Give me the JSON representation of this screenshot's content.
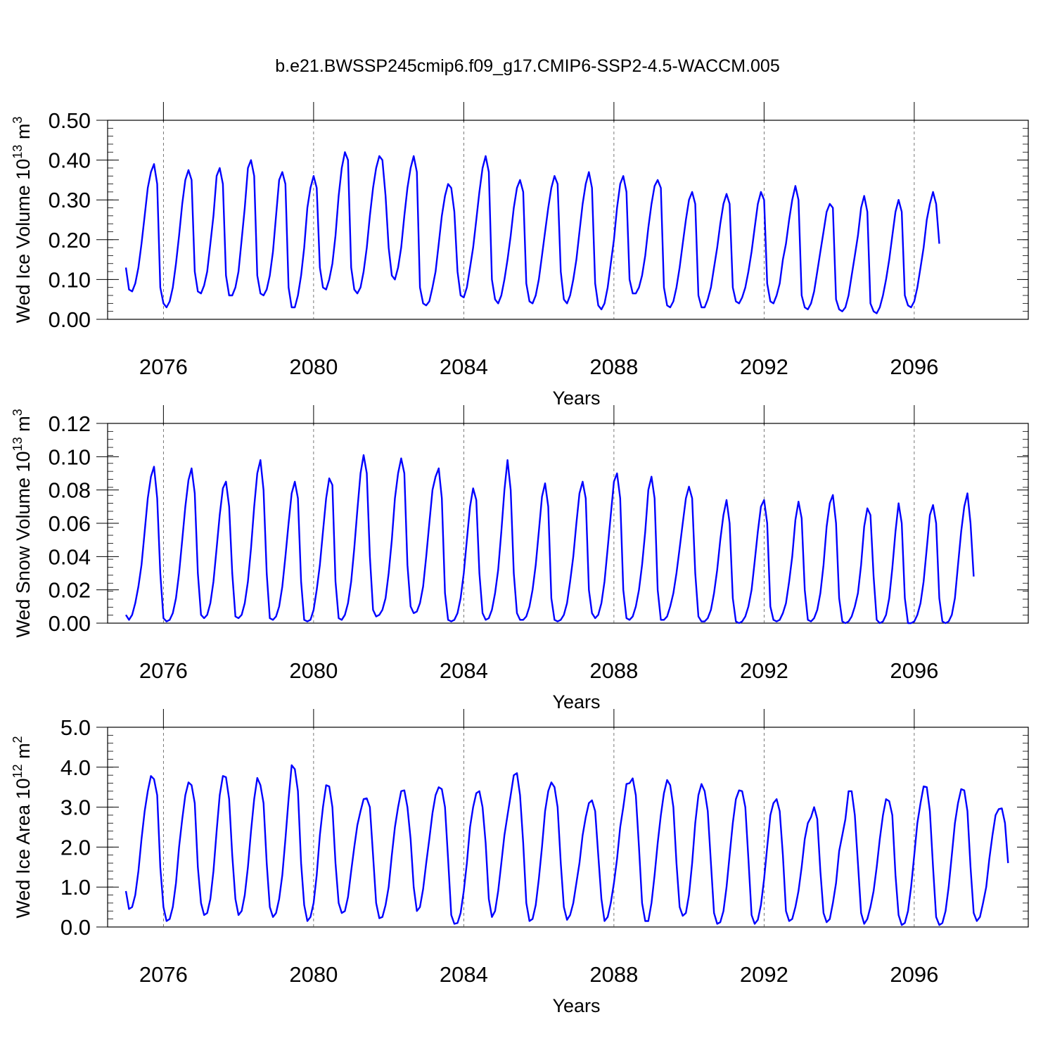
{
  "figure": {
    "title": "b.e21.BWSSP245cmip6.f09_g17.CMIP6-SSP2-4.5-WACCM.005"
  },
  "chart_data": [
    {
      "type": "line",
      "ylabel": "Wed Ice Volume 10",
      "ylabel_exp": "13",
      "ylabel_unit": " m",
      "ylabel_unit_exp": "3",
      "xlabel": "Years",
      "xlim": [
        2075,
        2099
      ],
      "ylim": [
        0,
        0.5
      ],
      "xticks": [
        "2076",
        "2080",
        "2084",
        "2088",
        "2092",
        "2096"
      ],
      "xtick_values": [
        2076,
        2080,
        2084,
        2088,
        2092,
        2096
      ],
      "yticks": [
        "0.00",
        "0.10",
        "0.20",
        "0.30",
        "0.40",
        "0.50"
      ],
      "ytick_values": [
        0,
        0.1,
        0.2,
        0.3,
        0.4,
        0.5
      ],
      "grid": "dashed vertical lines at 4-year ticks",
      "series": [
        {
          "color": "#0000ff",
          "x_start": 2075,
          "x_step_months": 1,
          "values": [
            0.13,
            0.075,
            0.07,
            0.09,
            0.13,
            0.19,
            0.26,
            0.33,
            0.37,
            0.39,
            0.34,
            0.08,
            0.04,
            0.03,
            0.045,
            0.08,
            0.14,
            0.21,
            0.29,
            0.35,
            0.375,
            0.35,
            0.12,
            0.07,
            0.065,
            0.085,
            0.12,
            0.19,
            0.26,
            0.36,
            0.38,
            0.34,
            0.11,
            0.06,
            0.06,
            0.08,
            0.12,
            0.2,
            0.28,
            0.38,
            0.4,
            0.36,
            0.11,
            0.065,
            0.06,
            0.075,
            0.11,
            0.17,
            0.26,
            0.35,
            0.37,
            0.34,
            0.08,
            0.03,
            0.03,
            0.06,
            0.11,
            0.18,
            0.28,
            0.33,
            0.36,
            0.33,
            0.13,
            0.08,
            0.075,
            0.1,
            0.14,
            0.21,
            0.31,
            0.38,
            0.42,
            0.4,
            0.13,
            0.075,
            0.065,
            0.08,
            0.12,
            0.18,
            0.26,
            0.33,
            0.38,
            0.41,
            0.4,
            0.31,
            0.18,
            0.11,
            0.1,
            0.13,
            0.18,
            0.26,
            0.33,
            0.38,
            0.41,
            0.37,
            0.08,
            0.04,
            0.035,
            0.045,
            0.08,
            0.12,
            0.19,
            0.26,
            0.31,
            0.34,
            0.33,
            0.27,
            0.12,
            0.06,
            0.055,
            0.08,
            0.13,
            0.18,
            0.25,
            0.32,
            0.38,
            0.41,
            0.37,
            0.1,
            0.05,
            0.04,
            0.06,
            0.1,
            0.15,
            0.21,
            0.28,
            0.33,
            0.35,
            0.32,
            0.09,
            0.045,
            0.04,
            0.06,
            0.1,
            0.16,
            0.22,
            0.28,
            0.33,
            0.36,
            0.34,
            0.12,
            0.05,
            0.04,
            0.06,
            0.1,
            0.15,
            0.22,
            0.29,
            0.34,
            0.37,
            0.33,
            0.09,
            0.035,
            0.025,
            0.04,
            0.08,
            0.14,
            0.2,
            0.28,
            0.34,
            0.36,
            0.32,
            0.1,
            0.065,
            0.065,
            0.08,
            0.11,
            0.16,
            0.23,
            0.29,
            0.335,
            0.35,
            0.33,
            0.08,
            0.035,
            0.03,
            0.045,
            0.08,
            0.13,
            0.19,
            0.25,
            0.3,
            0.32,
            0.29,
            0.06,
            0.03,
            0.03,
            0.05,
            0.08,
            0.13,
            0.18,
            0.24,
            0.29,
            0.315,
            0.29,
            0.08,
            0.045,
            0.04,
            0.055,
            0.08,
            0.12,
            0.17,
            0.23,
            0.29,
            0.32,
            0.3,
            0.09,
            0.045,
            0.04,
            0.06,
            0.09,
            0.15,
            0.19,
            0.25,
            0.3,
            0.335,
            0.3,
            0.06,
            0.03,
            0.025,
            0.04,
            0.07,
            0.12,
            0.17,
            0.22,
            0.27,
            0.29,
            0.28,
            0.05,
            0.025,
            0.02,
            0.03,
            0.06,
            0.11,
            0.16,
            0.21,
            0.28,
            0.31,
            0.27,
            0.04,
            0.02,
            0.015,
            0.03,
            0.06,
            0.1,
            0.15,
            0.21,
            0.27,
            0.3,
            0.27,
            0.06,
            0.035,
            0.03,
            0.045,
            0.08,
            0.13,
            0.18,
            0.25,
            0.29,
            0.32,
            0.29,
            0.19
          ]
        }
      ]
    },
    {
      "type": "line",
      "ylabel": "Wed Snow Volume 10",
      "ylabel_exp": "13",
      "ylabel_unit": " m",
      "ylabel_unit_exp": "3",
      "xlabel": "Years",
      "xlim": [
        2075,
        2099
      ],
      "ylim": [
        0,
        0.12
      ],
      "xticks": [
        "2076",
        "2080",
        "2084",
        "2088",
        "2092",
        "2096"
      ],
      "xtick_values": [
        2076,
        2080,
        2084,
        2088,
        2092,
        2096
      ],
      "yticks": [
        "0.00",
        "0.02",
        "0.04",
        "0.06",
        "0.08",
        "0.10",
        "0.12"
      ],
      "ytick_values": [
        0,
        0.02,
        0.04,
        0.06,
        0.08,
        0.1,
        0.12
      ],
      "grid": "dashed vertical lines at 4-year ticks",
      "series": [
        {
          "color": "#0000ff",
          "x_start": 2075,
          "x_step_months": 1,
          "values": [
            0.005,
            0.002,
            0.005,
            0.012,
            0.022,
            0.035,
            0.055,
            0.075,
            0.088,
            0.094,
            0.075,
            0.03,
            0.003,
            0.001,
            0.002,
            0.006,
            0.015,
            0.03,
            0.05,
            0.07,
            0.086,
            0.093,
            0.078,
            0.03,
            0.005,
            0.003,
            0.005,
            0.012,
            0.025,
            0.045,
            0.065,
            0.081,
            0.085,
            0.07,
            0.03,
            0.004,
            0.003,
            0.005,
            0.012,
            0.025,
            0.045,
            0.07,
            0.09,
            0.098,
            0.08,
            0.03,
            0.003,
            0.002,
            0.004,
            0.01,
            0.022,
            0.04,
            0.06,
            0.078,
            0.085,
            0.075,
            0.025,
            0.002,
            0.001,
            0.002,
            0.008,
            0.02,
            0.035,
            0.055,
            0.075,
            0.087,
            0.083,
            0.025,
            0.003,
            0.002,
            0.005,
            0.012,
            0.025,
            0.045,
            0.068,
            0.09,
            0.101,
            0.09,
            0.04,
            0.008,
            0.004,
            0.005,
            0.008,
            0.015,
            0.03,
            0.05,
            0.075,
            0.09,
            0.099,
            0.09,
            0.035,
            0.01,
            0.006,
            0.007,
            0.012,
            0.022,
            0.04,
            0.06,
            0.08,
            0.088,
            0.093,
            0.075,
            0.018,
            0.002,
            0.001,
            0.002,
            0.006,
            0.015,
            0.03,
            0.05,
            0.07,
            0.081,
            0.074,
            0.03,
            0.006,
            0.002,
            0.003,
            0.008,
            0.018,
            0.032,
            0.055,
            0.08,
            0.098,
            0.08,
            0.03,
            0.006,
            0.002,
            0.002,
            0.004,
            0.01,
            0.02,
            0.035,
            0.055,
            0.076,
            0.084,
            0.07,
            0.015,
            0.002,
            0.001,
            0.002,
            0.005,
            0.012,
            0.025,
            0.04,
            0.06,
            0.078,
            0.085,
            0.075,
            0.02,
            0.006,
            0.003,
            0.005,
            0.012,
            0.025,
            0.045,
            0.065,
            0.085,
            0.09,
            0.075,
            0.02,
            0.003,
            0.002,
            0.004,
            0.01,
            0.02,
            0.035,
            0.055,
            0.08,
            0.088,
            0.075,
            0.02,
            0.002,
            0.002,
            0.004,
            0.01,
            0.018,
            0.03,
            0.045,
            0.06,
            0.075,
            0.082,
            0.075,
            0.03,
            0.004,
            0.001,
            0.001,
            0.003,
            0.008,
            0.018,
            0.032,
            0.05,
            0.065,
            0.074,
            0.06,
            0.015,
            0.001,
            0.0,
            0.001,
            0.004,
            0.01,
            0.02,
            0.037,
            0.055,
            0.07,
            0.074,
            0.06,
            0.01,
            0.002,
            0.001,
            0.002,
            0.006,
            0.012,
            0.025,
            0.04,
            0.062,
            0.073,
            0.063,
            0.02,
            0.002,
            0.001,
            0.003,
            0.008,
            0.018,
            0.035,
            0.058,
            0.072,
            0.077,
            0.06,
            0.015,
            0.001,
            0.0,
            0.001,
            0.004,
            0.01,
            0.018,
            0.035,
            0.058,
            0.069,
            0.065,
            0.028,
            0.002,
            0.0,
            0.001,
            0.005,
            0.015,
            0.033,
            0.055,
            0.072,
            0.06,
            0.015,
            0.0,
            0.0,
            0.001,
            0.005,
            0.012,
            0.025,
            0.045,
            0.065,
            0.071,
            0.06,
            0.015,
            0.001,
            0.0,
            0.001,
            0.005,
            0.015,
            0.035,
            0.055,
            0.07,
            0.078,
            0.06,
            0.028
          ]
        }
      ]
    },
    {
      "type": "line",
      "ylabel": "Wed Ice Area 10",
      "ylabel_exp": "12",
      "ylabel_unit": " m",
      "ylabel_unit_exp": "2",
      "xlabel": "Years",
      "xlim": [
        2075,
        2099
      ],
      "ylim": [
        0,
        5
      ],
      "xticks": [
        "2076",
        "2080",
        "2084",
        "2088",
        "2092",
        "2096"
      ],
      "xtick_values": [
        2076,
        2080,
        2084,
        2088,
        2092,
        2096
      ],
      "yticks": [
        "0.0",
        "1.0",
        "2.0",
        "3.0",
        "4.0",
        "5.0"
      ],
      "ytick_values": [
        0,
        1,
        2,
        3,
        4,
        5
      ],
      "grid": "dashed vertical lines at 4-year ticks",
      "series": [
        {
          "color": "#0000ff",
          "x_start": 2075,
          "x_step_months": 1,
          "values": [
            0.9,
            0.45,
            0.5,
            0.8,
            1.4,
            2.2,
            2.9,
            3.4,
            3.78,
            3.7,
            3.3,
            1.5,
            0.5,
            0.15,
            0.2,
            0.5,
            1.1,
            2.0,
            2.7,
            3.3,
            3.62,
            3.55,
            3.1,
            1.5,
            0.6,
            0.3,
            0.35,
            0.7,
            1.4,
            2.4,
            3.3,
            3.78,
            3.75,
            3.2,
            1.8,
            0.7,
            0.3,
            0.4,
            0.8,
            1.5,
            2.4,
            3.2,
            3.73,
            3.55,
            3.1,
            1.6,
            0.5,
            0.25,
            0.35,
            0.7,
            1.3,
            2.2,
            3.2,
            4.05,
            3.95,
            3.4,
            1.6,
            0.55,
            0.15,
            0.25,
            0.6,
            1.3,
            2.3,
            3.0,
            3.55,
            3.52,
            3.0,
            1.6,
            0.6,
            0.35,
            0.4,
            0.75,
            1.4,
            2.0,
            2.55,
            2.9,
            3.2,
            3.22,
            3.0,
            1.8,
            0.6,
            0.22,
            0.25,
            0.55,
            1.0,
            1.8,
            2.5,
            3.0,
            3.4,
            3.42,
            3.0,
            2.2,
            1.0,
            0.4,
            0.5,
            0.95,
            1.6,
            2.2,
            2.85,
            3.3,
            3.5,
            3.45,
            3.0,
            1.7,
            0.3,
            0.08,
            0.1,
            0.35,
            0.9,
            1.6,
            2.5,
            3.0,
            3.35,
            3.4,
            3.0,
            2.1,
            0.7,
            0.25,
            0.4,
            0.9,
            1.6,
            2.3,
            2.8,
            3.3,
            3.8,
            3.85,
            3.3,
            2.1,
            0.6,
            0.15,
            0.2,
            0.55,
            1.2,
            2.0,
            2.9,
            3.4,
            3.62,
            3.5,
            3.0,
            1.6,
            0.5,
            0.18,
            0.3,
            0.6,
            1.1,
            1.6,
            2.3,
            2.75,
            3.1,
            3.17,
            2.9,
            1.8,
            0.7,
            0.15,
            0.25,
            0.6,
            1.1,
            1.7,
            2.5,
            3.0,
            3.58,
            3.6,
            3.72,
            3.3,
            2.0,
            0.6,
            0.15,
            0.15,
            0.6,
            1.3,
            2.1,
            2.8,
            3.35,
            3.68,
            3.55,
            3.0,
            1.6,
            0.5,
            0.28,
            0.35,
            0.8,
            1.6,
            2.6,
            3.3,
            3.58,
            3.4,
            2.9,
            1.6,
            0.35,
            0.08,
            0.12,
            0.4,
            1.0,
            1.8,
            2.6,
            3.2,
            3.42,
            3.4,
            3.0,
            1.7,
            0.3,
            0.08,
            0.18,
            0.55,
            1.2,
            2.0,
            2.8,
            3.1,
            3.2,
            2.9,
            1.8,
            0.4,
            0.15,
            0.2,
            0.5,
            0.9,
            1.5,
            2.2,
            2.6,
            2.75,
            3.0,
            2.7,
            1.4,
            0.35,
            0.12,
            0.2,
            0.6,
            1.1,
            1.9,
            2.3,
            2.7,
            3.4,
            3.4,
            2.8,
            1.6,
            0.35,
            0.08,
            0.2,
            0.5,
            0.9,
            1.5,
            2.2,
            2.8,
            3.2,
            3.15,
            2.8,
            1.3,
            0.3,
            0.05,
            0.1,
            0.4,
            1.0,
            1.8,
            2.6,
            3.1,
            3.52,
            3.5,
            2.9,
            1.5,
            0.25,
            0.05,
            0.1,
            0.4,
            1.0,
            1.8,
            2.6,
            3.1,
            3.45,
            3.42,
            2.9,
            1.5,
            0.35,
            0.15,
            0.25,
            0.6,
            1.0,
            1.7,
            2.3,
            2.8,
            2.95,
            2.97,
            2.6,
            1.6
          ]
        }
      ]
    }
  ]
}
